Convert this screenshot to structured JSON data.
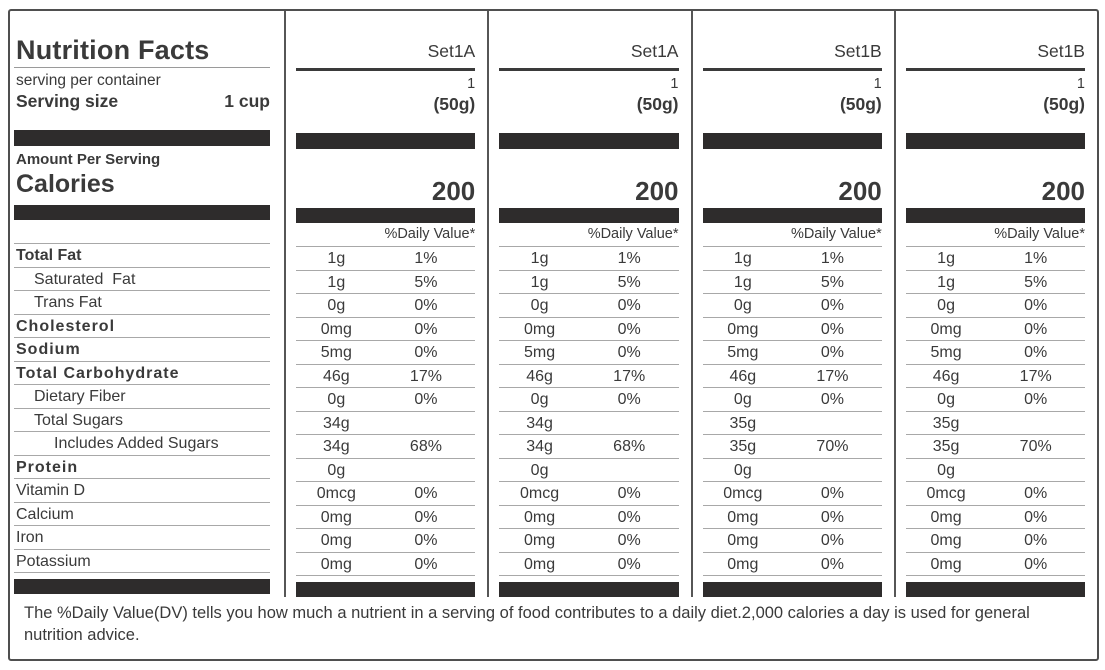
{
  "label": {
    "title": "Nutrition Facts",
    "serving_per_container_label": "serving per container",
    "serving_size_label": "Serving size",
    "serving_size_value": "1 cup",
    "amount_per_serving_label": "Amount Per Serving",
    "calories_label": "Calories",
    "daily_value_header": "%Daily Value*",
    "footnote": "The %Daily Value(DV) tells you how much a nutrient in a serving of food contributes to a daily diet.2,000 calories a day is used for general nutrition advice."
  },
  "nutrients": [
    {
      "name": "Total Fat",
      "bold": true,
      "spaced": false,
      "indent": 0
    },
    {
      "name": "Saturated  Fat",
      "bold": false,
      "spaced": false,
      "indent": 1
    },
    {
      "name": "Trans Fat",
      "bold": false,
      "spaced": false,
      "indent": 1
    },
    {
      "name": "Cholesterol",
      "bold": true,
      "spaced": true,
      "indent": 0
    },
    {
      "name": "Sodium",
      "bold": true,
      "spaced": true,
      "indent": 0
    },
    {
      "name": "Total Carbohydrate",
      "bold": true,
      "spaced": true,
      "indent": 0
    },
    {
      "name": "Dietary Fiber",
      "bold": false,
      "spaced": false,
      "indent": 1
    },
    {
      "name": "Total Sugars",
      "bold": false,
      "spaced": false,
      "indent": 1
    },
    {
      "name": "Includes Added Sugars",
      "bold": false,
      "spaced": false,
      "indent": 2
    },
    {
      "name": "Protein",
      "bold": true,
      "spaced": true,
      "indent": 0
    },
    {
      "name": "Vitamin D",
      "bold": false,
      "spaced": false,
      "indent": 0
    },
    {
      "name": "Calcium",
      "bold": false,
      "spaced": false,
      "indent": 0
    },
    {
      "name": "Iron",
      "bold": false,
      "spaced": false,
      "indent": 0
    },
    {
      "name": "Potassium",
      "bold": false,
      "spaced": false,
      "indent": 0
    }
  ],
  "columns": [
    {
      "set": "Set1A",
      "servings": "1",
      "serving_size": "(50g)",
      "calories": "200",
      "rows": [
        {
          "amount": "1g",
          "dv": "1%"
        },
        {
          "amount": "1g",
          "dv": "5%"
        },
        {
          "amount": "0g",
          "dv": "0%"
        },
        {
          "amount": "0mg",
          "dv": "0%"
        },
        {
          "amount": "5mg",
          "dv": "0%"
        },
        {
          "amount": "46g",
          "dv": "17%"
        },
        {
          "amount": "0g",
          "dv": "0%"
        },
        {
          "amount": "34g",
          "dv": ""
        },
        {
          "amount": "34g",
          "dv": "68%"
        },
        {
          "amount": "0g",
          "dv": ""
        },
        {
          "amount": "0mcg",
          "dv": "0%"
        },
        {
          "amount": "0mg",
          "dv": "0%"
        },
        {
          "amount": "0mg",
          "dv": "0%"
        },
        {
          "amount": "0mg",
          "dv": "0%"
        }
      ]
    },
    {
      "set": "Set1A",
      "servings": "1",
      "serving_size": "(50g)",
      "calories": "200",
      "rows": [
        {
          "amount": "1g",
          "dv": "1%"
        },
        {
          "amount": "1g",
          "dv": "5%"
        },
        {
          "amount": "0g",
          "dv": "0%"
        },
        {
          "amount": "0mg",
          "dv": "0%"
        },
        {
          "amount": "5mg",
          "dv": "0%"
        },
        {
          "amount": "46g",
          "dv": "17%"
        },
        {
          "amount": "0g",
          "dv": "0%"
        },
        {
          "amount": "34g",
          "dv": ""
        },
        {
          "amount": "34g",
          "dv": "68%"
        },
        {
          "amount": "0g",
          "dv": ""
        },
        {
          "amount": "0mcg",
          "dv": "0%"
        },
        {
          "amount": "0mg",
          "dv": "0%"
        },
        {
          "amount": "0mg",
          "dv": "0%"
        },
        {
          "amount": "0mg",
          "dv": "0%"
        }
      ]
    },
    {
      "set": "Set1B",
      "servings": "1",
      "serving_size": "(50g)",
      "calories": "200",
      "rows": [
        {
          "amount": "1g",
          "dv": "1%"
        },
        {
          "amount": "1g",
          "dv": "5%"
        },
        {
          "amount": "0g",
          "dv": "0%"
        },
        {
          "amount": "0mg",
          "dv": "0%"
        },
        {
          "amount": "5mg",
          "dv": "0%"
        },
        {
          "amount": "46g",
          "dv": "17%"
        },
        {
          "amount": "0g",
          "dv": "0%"
        },
        {
          "amount": "35g",
          "dv": ""
        },
        {
          "amount": "35g",
          "dv": "70%"
        },
        {
          "amount": "0g",
          "dv": ""
        },
        {
          "amount": "0mcg",
          "dv": "0%"
        },
        {
          "amount": "0mg",
          "dv": "0%"
        },
        {
          "amount": "0mg",
          "dv": "0%"
        },
        {
          "amount": "0mg",
          "dv": "0%"
        }
      ]
    },
    {
      "set": "Set1B",
      "servings": "1",
      "serving_size": "(50g)",
      "calories": "200",
      "rows": [
        {
          "amount": "1g",
          "dv": "1%"
        },
        {
          "amount": "1g",
          "dv": "5%"
        },
        {
          "amount": "0g",
          "dv": "0%"
        },
        {
          "amount": "0mg",
          "dv": "0%"
        },
        {
          "amount": "5mg",
          "dv": "0%"
        },
        {
          "amount": "46g",
          "dv": "17%"
        },
        {
          "amount": "0g",
          "dv": "0%"
        },
        {
          "amount": "35g",
          "dv": ""
        },
        {
          "amount": "35g",
          "dv": "70%"
        },
        {
          "amount": "0g",
          "dv": ""
        },
        {
          "amount": "0mcg",
          "dv": "0%"
        },
        {
          "amount": "0mg",
          "dv": "0%"
        },
        {
          "amount": "0mg",
          "dv": "0%"
        },
        {
          "amount": "0mg",
          "dv": "0%"
        }
      ]
    }
  ],
  "colors": {
    "text": "#3a3a3a",
    "bar": "#2e2c2c",
    "thin_rule": "#a8a8a8",
    "border": "#4f4f4f"
  }
}
